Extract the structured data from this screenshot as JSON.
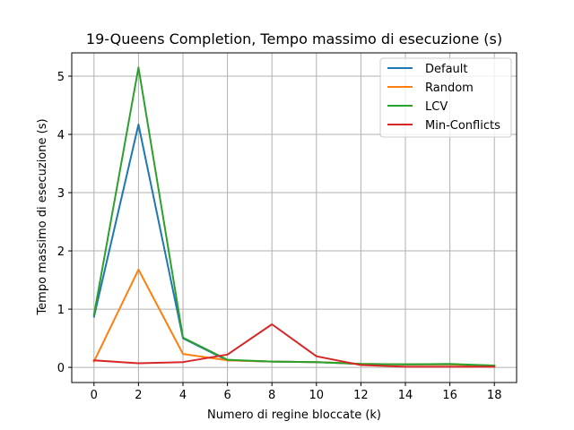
{
  "chart_data": {
    "type": "line",
    "title": "19-Queens Completion, Tempo massimo di esecuzione (s)",
    "xlabel": "Numero di regine bloccate (k)",
    "ylabel": "Tempo massimo di esecuzione (s)",
    "xlim": [
      -1,
      19
    ],
    "ylim": [
      -0.26,
      5.4
    ],
    "xticks": [
      0,
      2,
      4,
      6,
      8,
      10,
      12,
      14,
      16,
      18
    ],
    "yticks": [
      0,
      1,
      2,
      3,
      4,
      5
    ],
    "grid": true,
    "legend_position": "top-right",
    "x": [
      0,
      2,
      4,
      6,
      8,
      10,
      12,
      14,
      16,
      18
    ],
    "series": [
      {
        "name": "Default",
        "color": "#1f77b4",
        "values": [
          0.87,
          4.17,
          0.5,
          0.12,
          0.1,
          0.09,
          0.06,
          0.05,
          0.05,
          0.03
        ]
      },
      {
        "name": "Random",
        "color": "#ff7f0e",
        "values": [
          0.1,
          1.68,
          0.23,
          0.12,
          0.1,
          0.09,
          0.06,
          0.05,
          0.05,
          0.03
        ]
      },
      {
        "name": "LCV",
        "color": "#2ca02c",
        "values": [
          0.9,
          5.15,
          0.51,
          0.13,
          0.1,
          0.09,
          0.06,
          0.05,
          0.06,
          0.03
        ]
      },
      {
        "name": "Min-Conflicts",
        "color": "#d62728",
        "values": [
          0.12,
          0.07,
          0.09,
          0.22,
          0.74,
          0.19,
          0.04,
          0.01,
          0.01,
          0.01
        ]
      }
    ]
  }
}
